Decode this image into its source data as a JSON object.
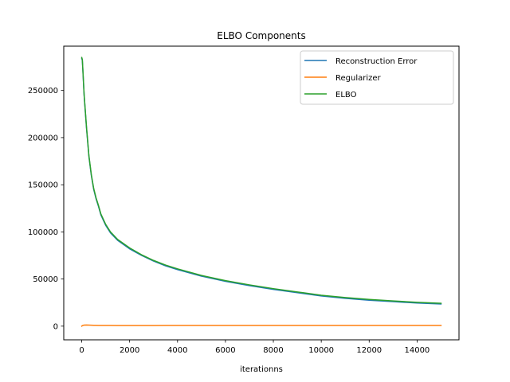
{
  "chart_data": {
    "type": "line",
    "title": "ELBO Components",
    "xlabel": "iterationns",
    "ylabel": "",
    "xlim": [
      -750,
      15750
    ],
    "ylim": [
      -14500,
      297000
    ],
    "xticks": [
      0,
      2000,
      4000,
      6000,
      8000,
      10000,
      12000,
      14000
    ],
    "yticks": [
      0,
      50000,
      100000,
      150000,
      200000,
      250000
    ],
    "grid": false,
    "legend_position": "top-right",
    "x": [
      0,
      25,
      50,
      100,
      200,
      300,
      400,
      500,
      600,
      700,
      800,
      1000,
      1200,
      1500,
      2000,
      2500,
      3000,
      3500,
      4000,
      4500,
      5000,
      6000,
      7000,
      8000,
      9000,
      10000,
      11000,
      12000,
      13000,
      14000,
      15000
    ],
    "series": [
      {
        "name": "Reconstruction Error",
        "color": "#1f77b4",
        "values": [
          284000,
          282000,
          270000,
          245000,
          210000,
          180000,
          160000,
          145000,
          135000,
          127000,
          118000,
          107000,
          99000,
          91000,
          82000,
          75000,
          69000,
          64000,
          60000,
          56500,
          53000,
          47500,
          43000,
          39000,
          35500,
          32000,
          29500,
          27500,
          26000,
          24500,
          23500
        ]
      },
      {
        "name": "Regularizer",
        "color": "#ff7f0e",
        "values": [
          0,
          500,
          800,
          1100,
          1200,
          1150,
          1050,
          950,
          900,
          850,
          820,
          780,
          760,
          740,
          730,
          730,
          740,
          750,
          760,
          770,
          780,
          790,
          800,
          805,
          810,
          815,
          820,
          825,
          830,
          835,
          840
        ]
      },
      {
        "name": "ELBO",
        "color": "#2ca02c",
        "values": [
          285000,
          283000,
          271000,
          246000,
          211000,
          181000,
          161000,
          146000,
          136000,
          128000,
          119000,
          108000,
          100000,
          92000,
          83000,
          75700,
          69700,
          64800,
          60800,
          57300,
          53800,
          48300,
          43800,
          39800,
          36300,
          32800,
          30300,
          28300,
          26800,
          25300,
          24300
        ]
      }
    ]
  }
}
